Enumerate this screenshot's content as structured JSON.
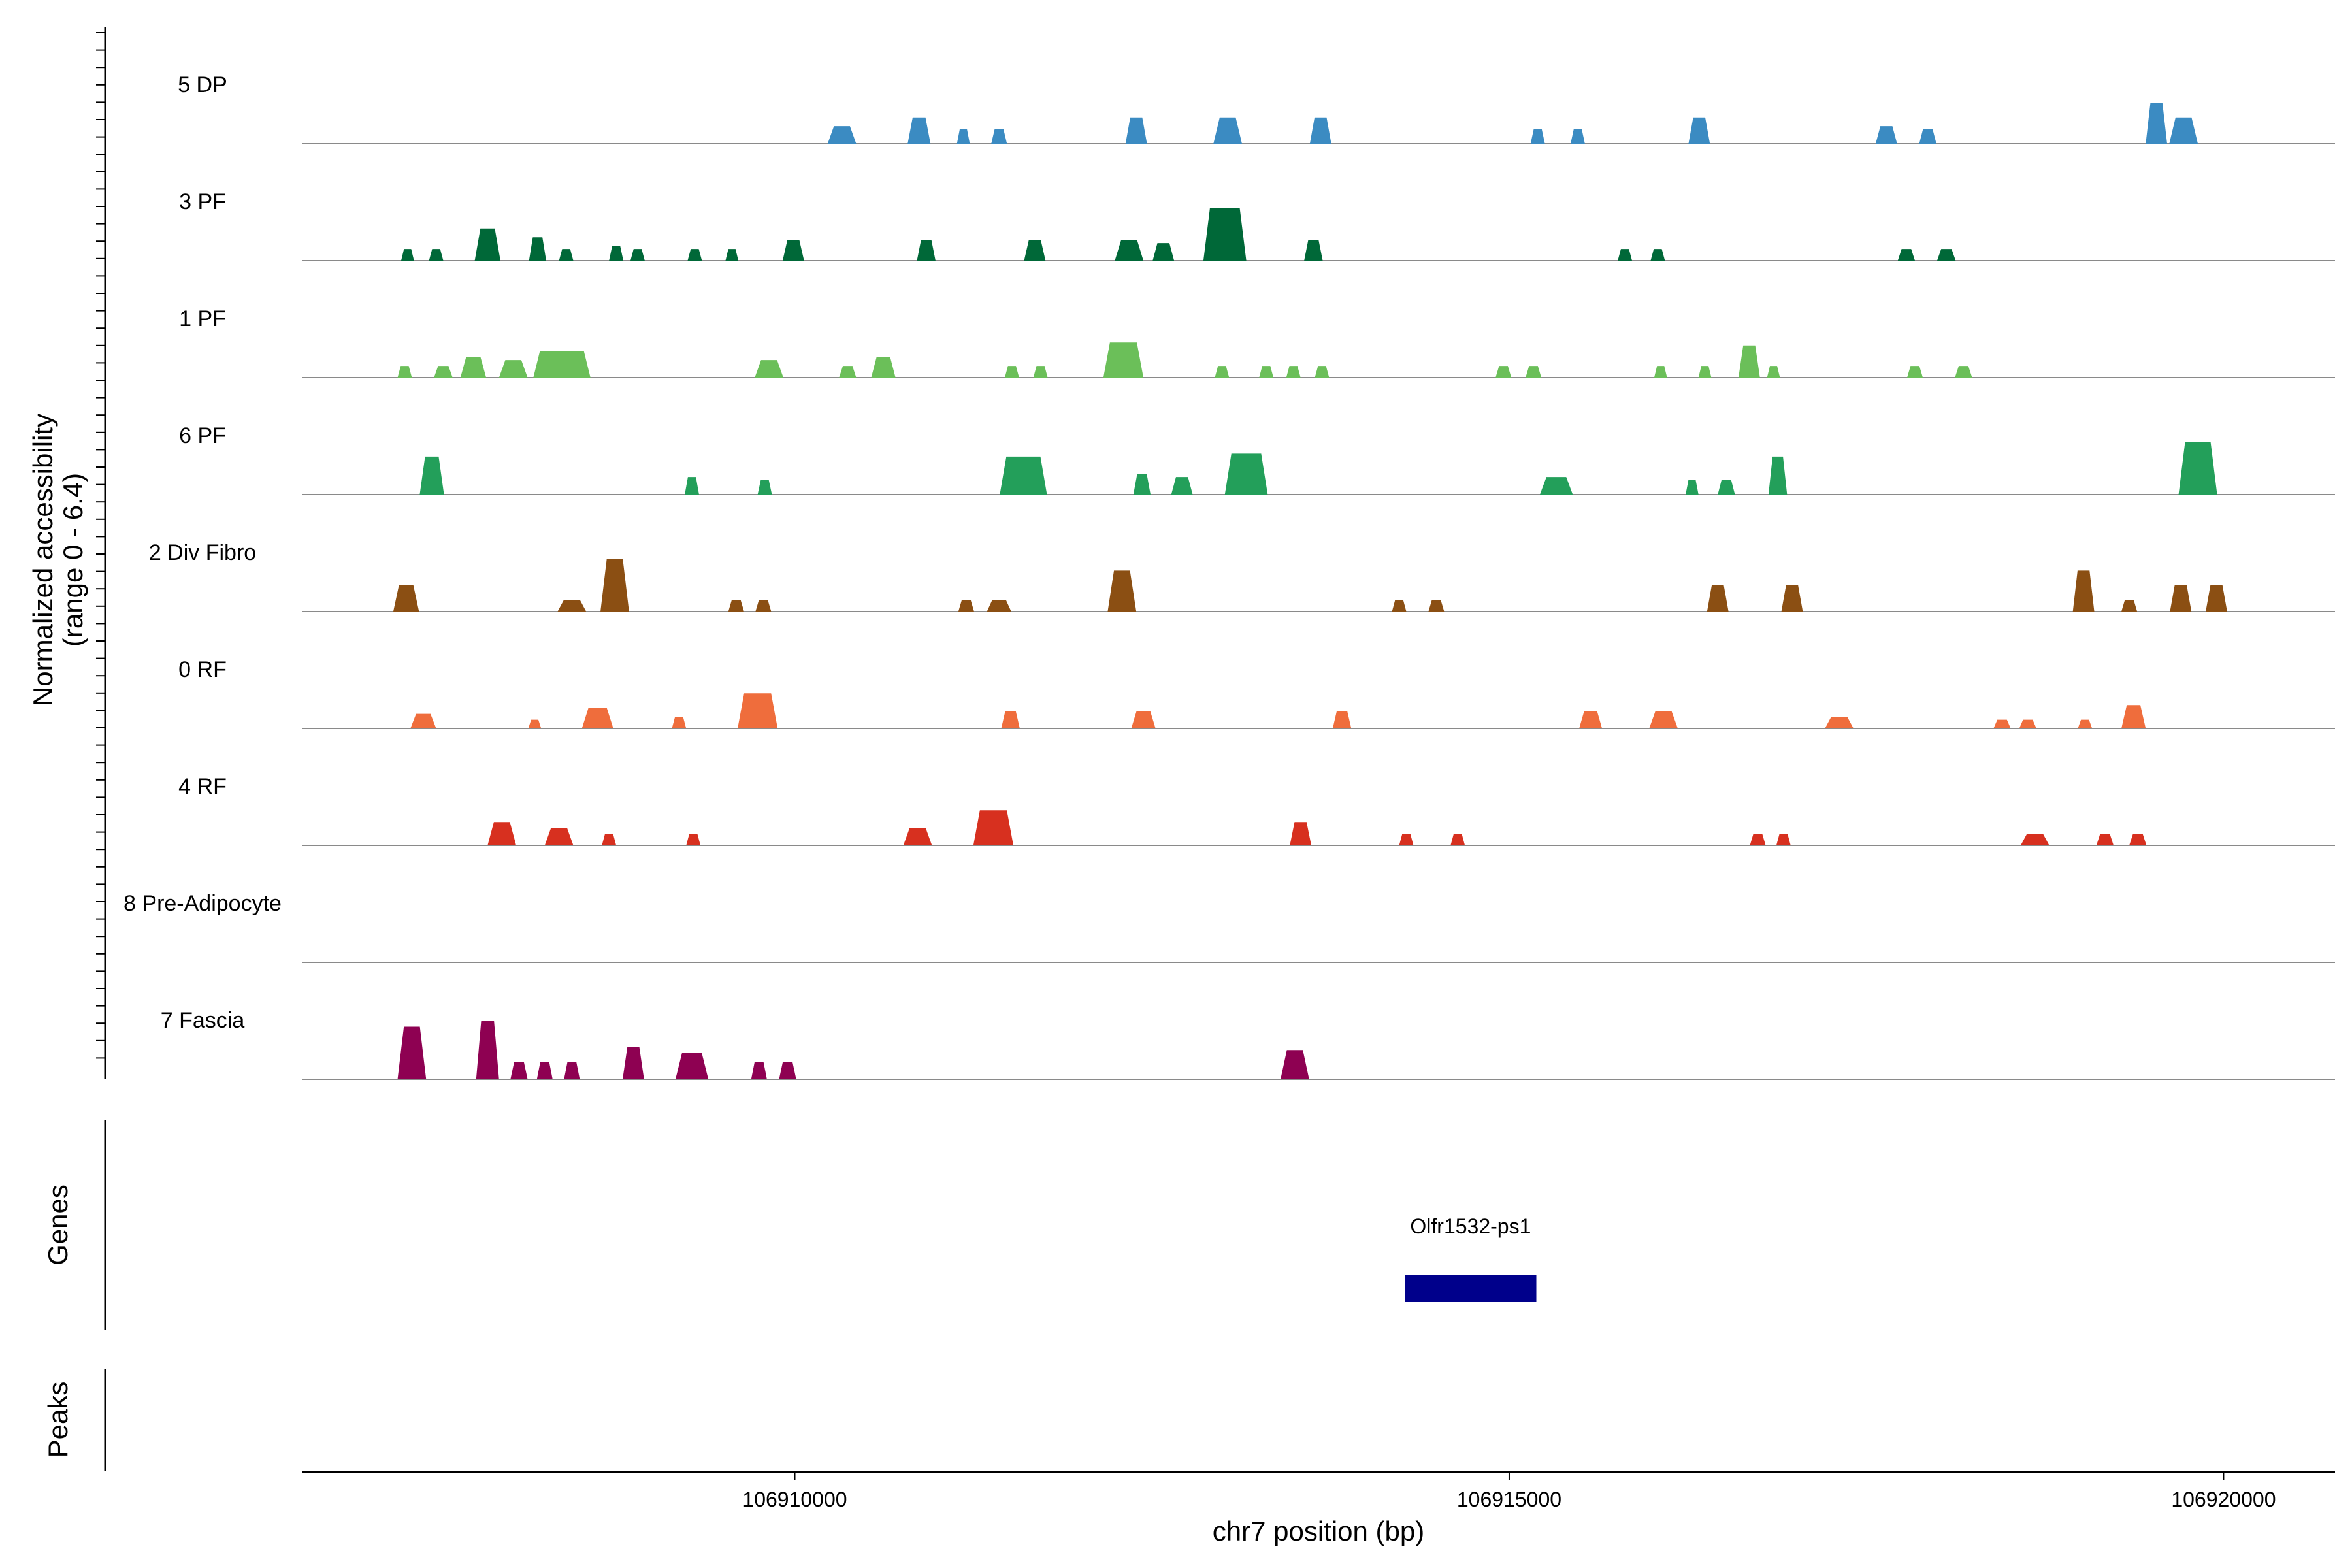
{
  "chart_data": {
    "type": "area",
    "title": "",
    "ylabel_line1": "Normalized accessibility",
    "ylabel_line2": "(range 0 - 6.4)",
    "genes_label": "Genes",
    "peaks_label": "Peaks",
    "xlabel": "chr7 position (bp)",
    "xlim": [
      106906550,
      106920780
    ],
    "xticks": [
      106910000,
      106915000,
      106920000
    ],
    "xtick_labels": [
      "106910000",
      "106915000",
      "106920000"
    ],
    "ylim": [
      0,
      6.4
    ],
    "tracks": [
      {
        "name": "5 DP",
        "color": "#3b8bc2",
        "peaks": [
          [
            106910330,
            0.6,
            200
          ],
          [
            106910870,
            0.9,
            160
          ],
          [
            106911180,
            0.5,
            90
          ],
          [
            106911430,
            0.5,
            110
          ],
          [
            106912390,
            0.9,
            150
          ],
          [
            106913030,
            0.9,
            200
          ],
          [
            106913680,
            0.9,
            150
          ],
          [
            106915200,
            0.5,
            100
          ],
          [
            106915480,
            0.5,
            100
          ],
          [
            106916330,
            0.9,
            150
          ],
          [
            106917640,
            0.6,
            150
          ],
          [
            106917930,
            0.5,
            120
          ],
          [
            106919530,
            1.4,
            150
          ],
          [
            106919720,
            0.9,
            200
          ]
        ]
      },
      {
        "name": "3 PF",
        "color": "#006838",
        "peaks": [
          [
            106907290,
            0.4,
            90
          ],
          [
            106907490,
            0.4,
            100
          ],
          [
            106907850,
            1.1,
            180
          ],
          [
            106908200,
            0.8,
            120
          ],
          [
            106908400,
            0.4,
            100
          ],
          [
            106908750,
            0.5,
            100
          ],
          [
            106908900,
            0.4,
            100
          ],
          [
            106909300,
            0.4,
            100
          ],
          [
            106909560,
            0.4,
            90
          ],
          [
            106909990,
            0.7,
            150
          ],
          [
            106910920,
            0.7,
            130
          ],
          [
            106911680,
            0.7,
            150
          ],
          [
            106912340,
            0.7,
            200
          ],
          [
            106912580,
            0.6,
            150
          ],
          [
            106913010,
            1.8,
            300
          ],
          [
            106913630,
            0.7,
            130
          ],
          [
            106915810,
            0.4,
            100
          ],
          [
            106916040,
            0.4,
            100
          ],
          [
            106917780,
            0.4,
            120
          ],
          [
            106918060,
            0.4,
            130
          ]
        ]
      },
      {
        "name": "1 PF",
        "color": "#6bbf59",
        "peaks": [
          [
            106907270,
            0.4,
            100
          ],
          [
            106907540,
            0.4,
            130
          ],
          [
            106907750,
            0.7,
            180
          ],
          [
            106908030,
            0.6,
            200
          ],
          [
            106908370,
            0.9,
            400
          ],
          [
            106909820,
            0.6,
            200
          ],
          [
            106910370,
            0.4,
            120
          ],
          [
            106910620,
            0.7,
            170
          ],
          [
            106911520,
            0.4,
            100
          ],
          [
            106911720,
            0.4,
            100
          ],
          [
            106912300,
            1.2,
            280
          ],
          [
            106912990,
            0.4,
            100
          ],
          [
            106913300,
            0.4,
            100
          ],
          [
            106913490,
            0.4,
            100
          ],
          [
            106913690,
            0.4,
            100
          ],
          [
            106914960,
            0.4,
            110
          ],
          [
            106915170,
            0.4,
            110
          ],
          [
            106916060,
            0.4,
            90
          ],
          [
            106916370,
            0.4,
            90
          ],
          [
            106916680,
            1.1,
            150
          ],
          [
            106916850,
            0.4,
            90
          ],
          [
            106917840,
            0.4,
            110
          ],
          [
            106918180,
            0.4,
            120
          ]
        ]
      },
      {
        "name": "6 PF",
        "color": "#239f5a",
        "peaks": [
          [
            106907460,
            1.3,
            170
          ],
          [
            106909280,
            0.6,
            100
          ],
          [
            106909790,
            0.5,
            100
          ],
          [
            106911600,
            1.3,
            330
          ],
          [
            106912430,
            0.7,
            120
          ],
          [
            106912710,
            0.6,
            150
          ],
          [
            106913160,
            1.4,
            300
          ],
          [
            106915330,
            0.6,
            230
          ],
          [
            106916280,
            0.5,
            90
          ],
          [
            106916520,
            0.5,
            120
          ],
          [
            106916880,
            1.3,
            130
          ],
          [
            106919820,
            1.8,
            270
          ]
        ]
      },
      {
        "name": "2 Div Fibro",
        "color": "#8b4f13",
        "peaks": [
          [
            106907280,
            0.9,
            180
          ],
          [
            106908440,
            0.4,
            200
          ],
          [
            106908740,
            1.8,
            200
          ],
          [
            106909590,
            0.4,
            110
          ],
          [
            106909780,
            0.4,
            110
          ],
          [
            106911200,
            0.4,
            110
          ],
          [
            106911430,
            0.4,
            170
          ],
          [
            106912290,
            1.4,
            200
          ],
          [
            106914230,
            0.4,
            100
          ],
          [
            106914490,
            0.4,
            110
          ],
          [
            106916460,
            0.9,
            150
          ],
          [
            106916980,
            0.9,
            150
          ],
          [
            106919020,
            1.4,
            150
          ],
          [
            106919340,
            0.4,
            110
          ],
          [
            106919700,
            0.9,
            150
          ],
          [
            106919950,
            0.9,
            150
          ]
        ]
      },
      {
        "name": "0 RF",
        "color": "#ef6d3c",
        "peaks": [
          [
            106907400,
            0.5,
            180
          ],
          [
            106908180,
            0.3,
            90
          ],
          [
            106908620,
            0.7,
            220
          ],
          [
            106909190,
            0.4,
            100
          ],
          [
            106909740,
            1.2,
            280
          ],
          [
            106911510,
            0.6,
            130
          ],
          [
            106912440,
            0.6,
            170
          ],
          [
            106913830,
            0.6,
            130
          ],
          [
            106915570,
            0.6,
            160
          ],
          [
            106916080,
            0.6,
            200
          ],
          [
            106917310,
            0.4,
            200
          ],
          [
            106918450,
            0.3,
            120
          ],
          [
            106918630,
            0.3,
            120
          ],
          [
            106919030,
            0.3,
            100
          ],
          [
            106919370,
            0.8,
            170
          ]
        ]
      },
      {
        "name": "4 RF",
        "color": "#d7301f",
        "peaks": [
          [
            106907950,
            0.8,
            200
          ],
          [
            106908350,
            0.6,
            200
          ],
          [
            106908700,
            0.4,
            100
          ],
          [
            106909290,
            0.4,
            100
          ],
          [
            106910860,
            0.6,
            200
          ],
          [
            106911390,
            1.2,
            280
          ],
          [
            106913540,
            0.8,
            150
          ],
          [
            106914280,
            0.4,
            100
          ],
          [
            106914640,
            0.4,
            100
          ],
          [
            106916740,
            0.4,
            110
          ],
          [
            106916920,
            0.4,
            100
          ],
          [
            106918680,
            0.4,
            200
          ],
          [
            106919170,
            0.4,
            120
          ],
          [
            106919400,
            0.4,
            120
          ]
        ]
      },
      {
        "name": "8 Pre-Adipocyte",
        "color": "#6a3d9a",
        "peaks": []
      },
      {
        "name": "7 Fascia",
        "color": "#8e0152",
        "peaks": [
          [
            106907320,
            1.8,
            200
          ],
          [
            106907850,
            2.0,
            160
          ],
          [
            106908070,
            0.6,
            120
          ],
          [
            106908250,
            0.6,
            110
          ],
          [
            106908440,
            0.6,
            110
          ],
          [
            106908870,
            1.1,
            150
          ],
          [
            106909280,
            0.9,
            230
          ],
          [
            106909750,
            0.6,
            110
          ],
          [
            106909950,
            0.6,
            120
          ],
          [
            106913500,
            1.0,
            200
          ]
        ]
      }
    ],
    "genes": [
      {
        "name": "Olfr1532-ps1",
        "start": 106914270,
        "end": 106915190,
        "color": "#00008b"
      }
    ],
    "peak_regions": []
  }
}
